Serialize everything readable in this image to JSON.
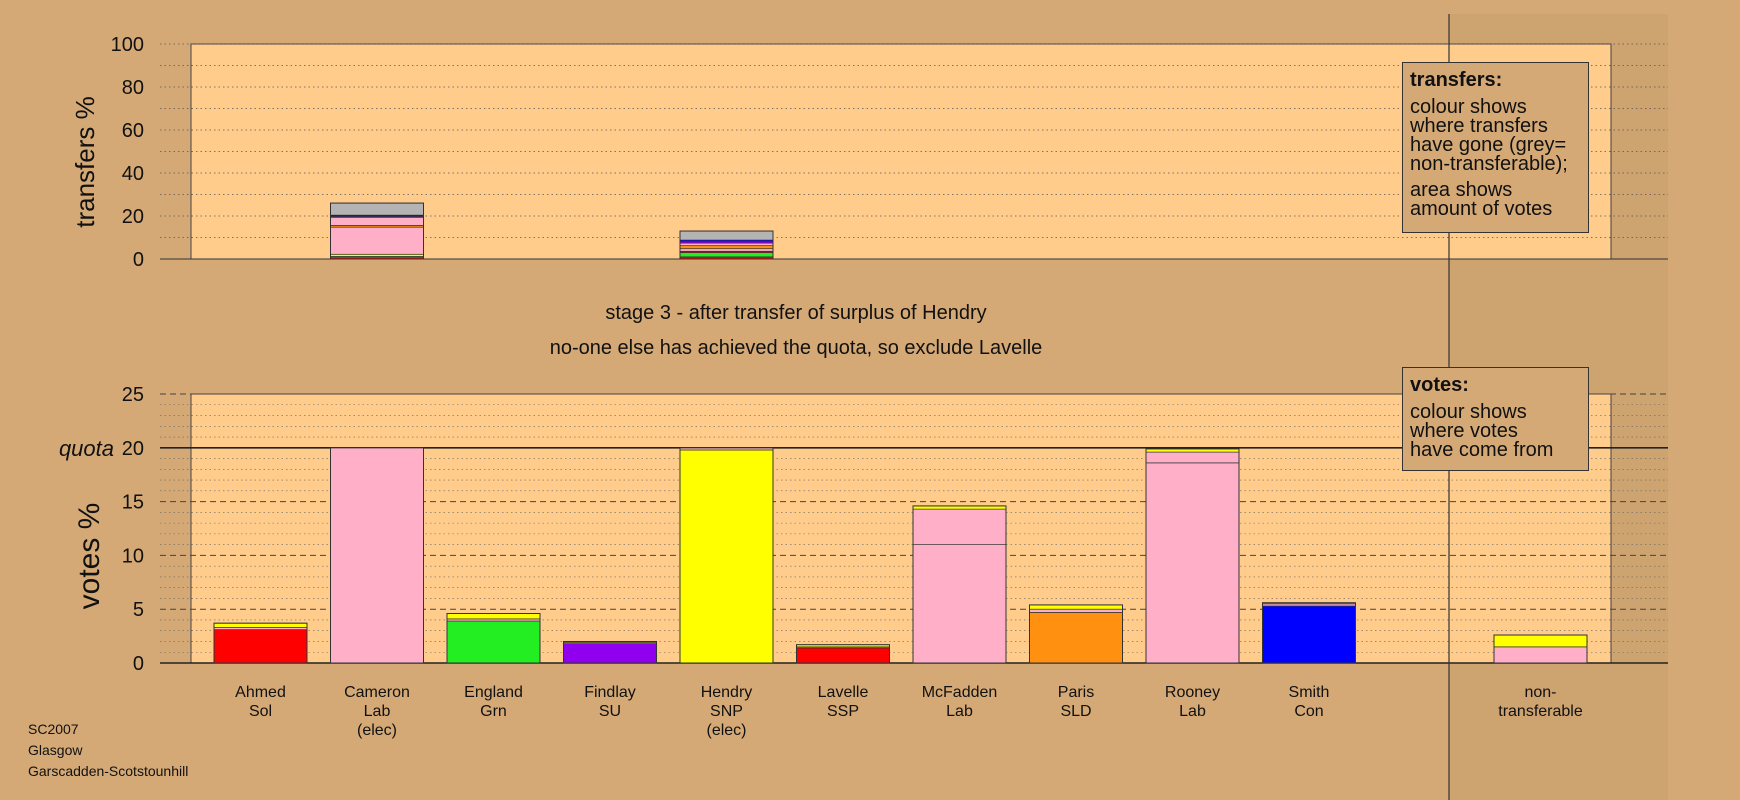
{
  "page": {
    "stage_line": "stage 3 - after transfer of surplus of Hendry",
    "decision_line": "no-one else has achieved the quota, so exclude Lavelle",
    "footer": [
      "SC2007",
      "Glasgow",
      "Garscadden-Scotstounhill"
    ]
  },
  "legend": {
    "transfers": {
      "title": "transfers:",
      "lines1": [
        "colour shows",
        "where transfers",
        "have gone (grey=",
        "non-transferable);"
      ],
      "lines2": [
        "area shows",
        "amount of votes"
      ]
    },
    "votes": {
      "title": "votes:",
      "lines": [
        "colour shows",
        "where votes",
        "have come from"
      ]
    }
  },
  "colors": {
    "background": "#d4a976",
    "plot_area": "#ffcc8c",
    "Sol": "#ff0000",
    "Lab": "#ffb0c8",
    "Grn": "#22ee22",
    "SU": "#9000ee",
    "SNP": "#ffff00",
    "SSP": "#ff0000",
    "SLD": "#ff9010",
    "Con": "#0000ff",
    "nontransferable": "#b4b4b4"
  },
  "chart_data": [
    {
      "type": "bar",
      "stacked": true,
      "ylabel": "transfers %",
      "ylim": [
        0,
        100
      ],
      "yticks": [
        0,
        20,
        40,
        60,
        80,
        100
      ],
      "grid": "dotted",
      "categories": [
        "Ahmed Sol",
        "Cameron Lab (elec)",
        "England Grn",
        "Findlay SU",
        "Hendry SNP (elec)",
        "Lavelle SSP",
        "McFadden Lab",
        "Paris SLD",
        "Rooney Lab",
        "Smith Con",
        "non-transferable"
      ],
      "bars": [
        {
          "category_index": 1,
          "total": 26,
          "segments": [
            {
              "to": "Ahmed Sol",
              "value": 0.6,
              "color": "#ff0000"
            },
            {
              "to": "England Grn",
              "value": 0.6,
              "color": "#22ee22"
            },
            {
              "to": "Hendry SNP",
              "value": 1.0,
              "color": "#ffff00"
            },
            {
              "to": "McFadden Lab",
              "value": 12.6,
              "color": "#ffb0c8"
            },
            {
              "to": "Paris SLD",
              "value": 0.8,
              "color": "#ff9010"
            },
            {
              "to": "Rooney Lab",
              "value": 3.8,
              "color": "#ffb0c8"
            },
            {
              "to": "Findlay SU",
              "value": 0.4,
              "color": "#9000ee"
            },
            {
              "to": "Smith Con",
              "value": 0.6,
              "color": "#0000ff"
            },
            {
              "to": "non-transferable",
              "value": 5.6,
              "color": "#b4b4b4"
            }
          ]
        },
        {
          "category_index": 4,
          "total": 13,
          "segments": [
            {
              "to": "Ahmed Sol",
              "value": 1.0,
              "color": "#ff0000"
            },
            {
              "to": "England Grn",
              "value": 2.0,
              "color": "#22ee22"
            },
            {
              "to": "Lavelle SSP",
              "value": 0.6,
              "color": "#ff0000"
            },
            {
              "to": "McFadden Lab",
              "value": 1.2,
              "color": "#ffb0c8"
            },
            {
              "to": "Paris SLD",
              "value": 1.4,
              "color": "#ff9010"
            },
            {
              "to": "Rooney Lab",
              "value": 1.2,
              "color": "#ffb0c8"
            },
            {
              "to": "Findlay SU",
              "value": 0.8,
              "color": "#9000ee"
            },
            {
              "to": "Smith Con",
              "value": 0.6,
              "color": "#0000ff"
            },
            {
              "to": "non-transferable",
              "value": 4.2,
              "color": "#b4b4b4"
            }
          ]
        }
      ]
    },
    {
      "type": "bar",
      "stacked": true,
      "ylabel": "votes %",
      "ylim": [
        0,
        25
      ],
      "yticks": [
        0,
        5,
        10,
        15,
        20,
        25
      ],
      "quota": 20,
      "quota_label": "quota",
      "grid": "dashed",
      "categories": [
        {
          "name": "Ahmed",
          "party": "Sol",
          "note": ""
        },
        {
          "name": "Cameron",
          "party": "Lab",
          "note": "(elec)"
        },
        {
          "name": "England",
          "party": "Grn",
          "note": ""
        },
        {
          "name": "Findlay",
          "party": "SU",
          "note": ""
        },
        {
          "name": "Hendry",
          "party": "SNP",
          "note": "(elec)"
        },
        {
          "name": "Lavelle",
          "party": "SSP",
          "note": ""
        },
        {
          "name": "McFadden",
          "party": "Lab",
          "note": ""
        },
        {
          "name": "Paris",
          "party": "SLD",
          "note": ""
        },
        {
          "name": "Rooney",
          "party": "Lab",
          "note": ""
        },
        {
          "name": "Smith",
          "party": "Con",
          "note": ""
        },
        {
          "name": "non-",
          "party": "transferable",
          "note": ""
        }
      ],
      "bars": [
        {
          "category_index": 0,
          "total": 3.7,
          "segments": [
            {
              "from": "first preferences",
              "value": 3.1,
              "color": "#ff0000"
            },
            {
              "from": "Cameron",
              "value": 0.2,
              "color": "#ffb0c8"
            },
            {
              "from": "Hendry",
              "value": 0.4,
              "color": "#ffff00"
            }
          ]
        },
        {
          "category_index": 1,
          "total": 20,
          "segments": [
            {
              "from": "first preferences",
              "value": 20,
              "color": "#ffb0c8"
            }
          ]
        },
        {
          "category_index": 2,
          "total": 4.6,
          "segments": [
            {
              "from": "first preferences",
              "value": 3.9,
              "color": "#22ee22"
            },
            {
              "from": "Cameron",
              "value": 0.2,
              "color": "#ffb0c8"
            },
            {
              "from": "Hendry",
              "value": 0.5,
              "color": "#ffff00"
            }
          ]
        },
        {
          "category_index": 3,
          "total": 2.0,
          "segments": [
            {
              "from": "first preferences",
              "value": 1.8,
              "color": "#9000ee"
            },
            {
              "from": "Cameron",
              "value": 0.1,
              "color": "#ffb0c8"
            },
            {
              "from": "Hendry",
              "value": 0.1,
              "color": "#ffff00"
            }
          ]
        },
        {
          "category_index": 4,
          "total": 20,
          "segments": [
            {
              "from": "first preferences",
              "value": 19.8,
              "color": "#ffff00"
            },
            {
              "from": "Cameron",
              "value": 0.2,
              "color": "#ffb0c8"
            }
          ]
        },
        {
          "category_index": 5,
          "total": 1.7,
          "segments": [
            {
              "from": "first preferences",
              "value": 1.4,
              "color": "#ff0000"
            },
            {
              "from": "Cameron",
              "value": 0.1,
              "color": "#ffb0c8"
            },
            {
              "from": "Hendry",
              "value": 0.2,
              "color": "#ffff00"
            }
          ]
        },
        {
          "category_index": 6,
          "total": 14.6,
          "segments": [
            {
              "from": "first preferences",
              "value": 11.0,
              "color": "#ffb0c8"
            },
            {
              "from": "Cameron",
              "value": 3.3,
              "color": "#ffb0c8"
            },
            {
              "from": "Hendry",
              "value": 0.3,
              "color": "#ffff00"
            }
          ]
        },
        {
          "category_index": 7,
          "total": 5.4,
          "segments": [
            {
              "from": "first preferences",
              "value": 4.7,
              "color": "#ff9010"
            },
            {
              "from": "Cameron",
              "value": 0.3,
              "color": "#ffb0c8"
            },
            {
              "from": "Hendry",
              "value": 0.4,
              "color": "#ffff00"
            }
          ]
        },
        {
          "category_index": 8,
          "total": 19.9,
          "segments": [
            {
              "from": "first preferences",
              "value": 18.6,
              "color": "#ffb0c8"
            },
            {
              "from": "Cameron",
              "value": 1.0,
              "color": "#ffb0c8"
            },
            {
              "from": "Hendry",
              "value": 0.3,
              "color": "#ffff00"
            }
          ]
        },
        {
          "category_index": 9,
          "total": 5.6,
          "segments": [
            {
              "from": "first preferences",
              "value": 5.3,
              "color": "#0000ff"
            },
            {
              "from": "Cameron",
              "value": 0.2,
              "color": "#ffb0c8"
            },
            {
              "from": "Hendry",
              "value": 0.1,
              "color": "#ffff00"
            }
          ]
        },
        {
          "category_index": 10,
          "total": 2.6,
          "segments": [
            {
              "from": "Cameron",
              "value": 1.5,
              "color": "#ffb0c8"
            },
            {
              "from": "Hendry",
              "value": 1.1,
              "color": "#ffff00"
            }
          ]
        }
      ]
    }
  ]
}
